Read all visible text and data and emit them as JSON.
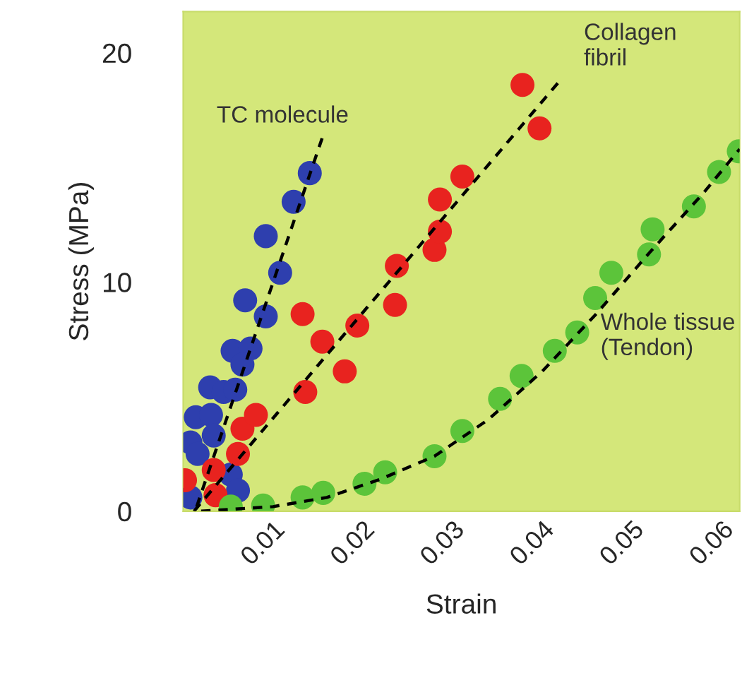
{
  "chart_data": {
    "type": "scatter",
    "xlabel": "Strain",
    "ylabel": "Stress (MPa)",
    "xlim": [
      0,
      0.062
    ],
    "ylim": [
      0,
      21.8
    ],
    "xticks": [
      0.01,
      0.02,
      0.03,
      0.04,
      0.05,
      0.06
    ],
    "yticks": [
      0,
      10,
      20
    ],
    "grid": false,
    "legend": false,
    "marker": "circle",
    "series": [
      {
        "name": "TC molecule",
        "color": "#2e3fae",
        "x": [
          0.0141,
          0.0123,
          0.0092,
          0.0108,
          0.0069,
          0.0092,
          0.0055,
          0.0075,
          0.0066,
          0.003,
          0.0045,
          0.0058,
          0.0014,
          0.0031,
          0.0008,
          0.0034,
          0.0016,
          0.0053,
          0.0061,
          0.0008
        ],
        "values": [
          14.75,
          13.5,
          12.0,
          10.4,
          9.2,
          8.5,
          7.0,
          7.1,
          6.4,
          5.4,
          5.2,
          5.3,
          4.1,
          4.2,
          3.0,
          3.3,
          2.5,
          1.6,
          0.9,
          0.6
        ]
      },
      {
        "name": "Collagen\nfibril",
        "color": "#e8231f",
        "x": [
          0.0002,
          0.0034,
          0.0036,
          0.0061,
          0.0066,
          0.0081,
          0.0136,
          0.0133,
          0.0155,
          0.018,
          0.0194,
          0.0238,
          0.0236,
          0.028,
          0.0286,
          0.0286,
          0.0311,
          0.0378,
          0.0397
        ],
        "values": [
          1.35,
          1.8,
          0.7,
          2.5,
          3.6,
          4.2,
          5.2,
          8.6,
          7.4,
          6.1,
          8.1,
          10.7,
          9.0,
          11.4,
          12.2,
          13.6,
          14.6,
          18.6,
          16.7
        ]
      },
      {
        "name": "Whole tissue\n(Tendon)",
        "color": "#5cc43a",
        "x": [
          0.0053,
          0.0089,
          0.0133,
          0.0156,
          0.0202,
          0.0225,
          0.028,
          0.0311,
          0.0353,
          0.0377,
          0.0414,
          0.0439,
          0.0459,
          0.0477,
          0.0519,
          0.0523,
          0.0569,
          0.0597,
          0.0619
        ],
        "values": [
          0.2,
          0.25,
          0.6,
          0.8,
          1.2,
          1.7,
          2.4,
          3.5,
          4.9,
          5.9,
          7.0,
          7.8,
          9.3,
          10.4,
          11.2,
          12.3,
          13.3,
          14.8,
          15.7
        ]
      },
      {
        "type": "line",
        "color": "#000000",
        "line_style": "dashed",
        "marker": "none",
        "x": [
          0.0015,
          0.0155
        ],
        "values": [
          0.2,
          16.3
        ]
      },
      {
        "type": "line",
        "color": "#000000",
        "line_style": "dashed",
        "marker": "none",
        "x": [
          0.0012,
          0.042
        ],
        "values": [
          0,
          18.8
        ]
      },
      {
        "type": "line",
        "color": "#000000",
        "line_style": "dashed",
        "marker": "none",
        "x": [
          0.002,
          0.01,
          0.016,
          0.022,
          0.028,
          0.034,
          0.04,
          0.046,
          0.052,
          0.058,
          0.062
        ],
        "values": [
          0,
          0.2,
          0.6,
          1.4,
          2.4,
          4.0,
          6.1,
          8.6,
          11.3,
          13.9,
          15.8
        ]
      }
    ]
  }
}
